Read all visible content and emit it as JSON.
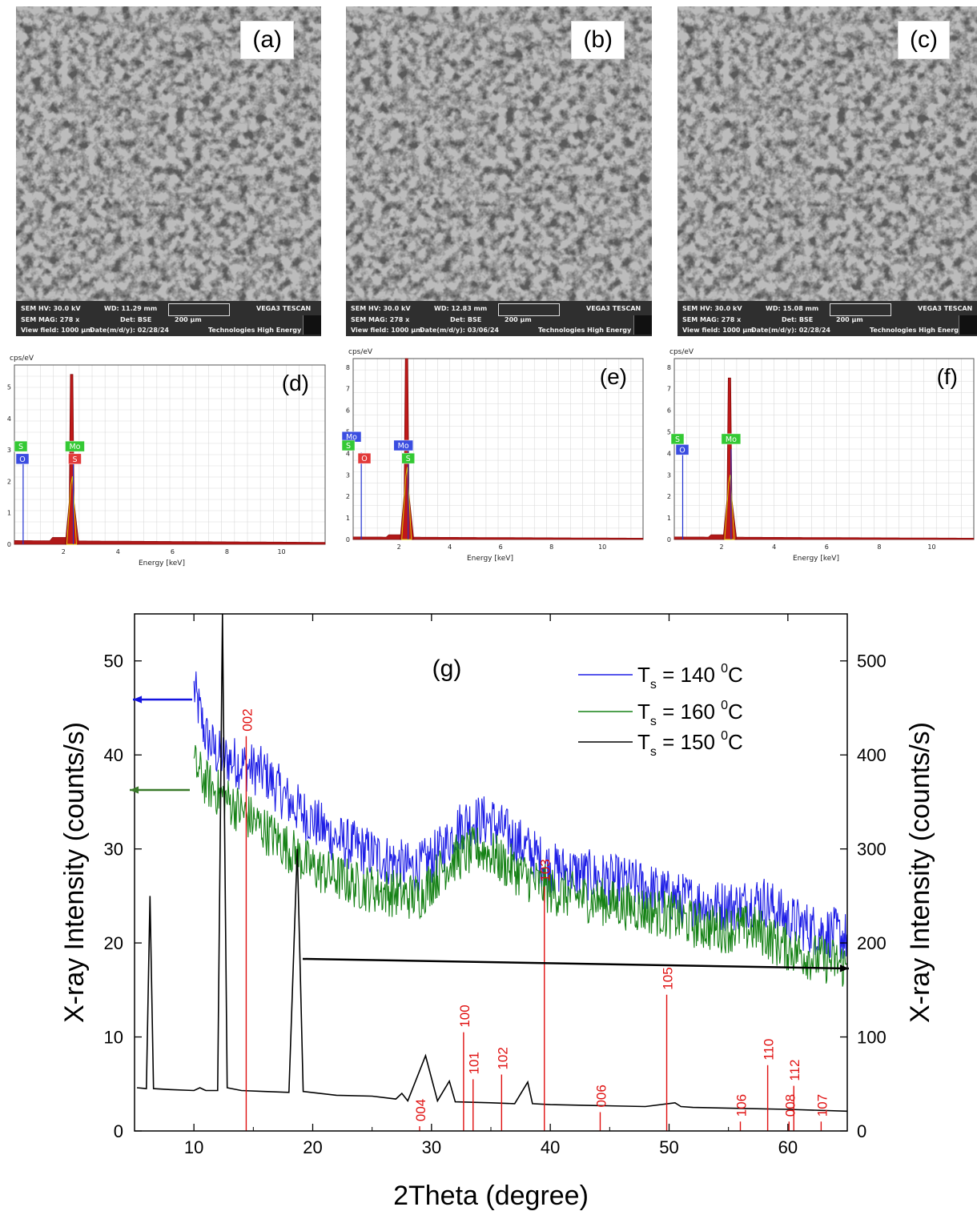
{
  "sem_panels": [
    {
      "label": "(a)",
      "hv": "SEM HV: 30.0 kV",
      "wd": "WD: 11.29 mm",
      "mag": "SEM MAG: 278 x",
      "det": "Det: BSE",
      "scale": "200 µm",
      "view": "View field: 1000 µm",
      "date": "Date(m/d/y): 02/28/24",
      "vendor": "VEGA3 TESCAN",
      "org": "Technologies High Energy"
    },
    {
      "label": "(b)",
      "hv": "SEM HV: 30.0 kV",
      "wd": "WD: 12.83 mm",
      "mag": "SEM MAG: 278 x",
      "det": "Det: BSE",
      "scale": "200 µm",
      "view": "View field: 1000 µm",
      "date": "Date(m/d/y): 03/06/24",
      "vendor": "VEGA3 TESCAN",
      "org": "Technologies High Energy"
    },
    {
      "label": "(c)",
      "hv": "SEM HV: 30.0 kV",
      "wd": "WD: 15.08 mm",
      "mag": "SEM MAG: 278 x",
      "det": "Det: BSE",
      "scale": "200 µm",
      "view": "View field: 1000 µm",
      "date": "Date(m/d/y): 02/28/24",
      "vendor": "VEGA3 TESCAN",
      "org": "Technologies High Energy"
    }
  ],
  "eds_panels": [
    {
      "label": "(d)",
      "ylabel": "cps/eV",
      "xlabel": "Energy [keV]",
      "yticks": [
        "0",
        "1",
        "2",
        "3",
        "4",
        "5"
      ],
      "xticks": [
        "2",
        "4",
        "6",
        "8",
        "10"
      ],
      "tags": [
        "Mo",
        "S",
        "O",
        "S"
      ]
    },
    {
      "label": "(e)",
      "ylabel": "cps/eV",
      "xlabel": "Energy [keV]",
      "yticks": [
        "0",
        "1",
        "2",
        "3",
        "4",
        "5",
        "6",
        "7",
        "8"
      ],
      "xticks": [
        "2",
        "4",
        "6",
        "8",
        "10"
      ],
      "tags": [
        "Mo",
        "S",
        "O",
        "Mo",
        "S"
      ]
    },
    {
      "label": "(f)",
      "ylabel": "cps/eV",
      "xlabel": "Energy [keV]",
      "yticks": [
        "0",
        "1",
        "2",
        "3",
        "4",
        "5",
        "6",
        "7",
        "8"
      ],
      "xticks": [
        "2",
        "4",
        "6",
        "8",
        "10"
      ],
      "tags": [
        "S",
        "O",
        "Mo"
      ]
    }
  ],
  "chart_data": {
    "type": "line",
    "annotation": "(g)",
    "xlabel": "2Theta (degree)",
    "ylabel": "X-ray Intensity (counts/s)",
    "ylabel_right": "X-ray Intensity (counts/s)",
    "xlim": [
      5,
      65
    ],
    "ylim": [
      0,
      55
    ],
    "ylim_right": [
      0,
      550
    ],
    "xticks": [
      10,
      20,
      30,
      40,
      50,
      60
    ],
    "yticks": [
      0,
      10,
      20,
      30,
      40,
      50
    ],
    "yticks_right": [
      0,
      100,
      200,
      300,
      400,
      500
    ],
    "series": [
      {
        "name": "T_s = 140 °C",
        "legend_main": "T",
        "legend_sub": "s",
        "legend_rest": " = 140 ",
        "legend_sup": "0",
        "legend_end": "C",
        "color": "#1e1ee6",
        "axis": "left",
        "points": [
          [
            10,
            47
          ],
          [
            11,
            42
          ],
          [
            12,
            40
          ],
          [
            14,
            39
          ],
          [
            16,
            38
          ],
          [
            18,
            35
          ],
          [
            20,
            33
          ],
          [
            22,
            31
          ],
          [
            24,
            30
          ],
          [
            26,
            29
          ],
          [
            28,
            28
          ],
          [
            29,
            28
          ],
          [
            30,
            29
          ],
          [
            31,
            30
          ],
          [
            32,
            32
          ],
          [
            33,
            33
          ],
          [
            34,
            33
          ],
          [
            35,
            33
          ],
          [
            36,
            32
          ],
          [
            38,
            30
          ],
          [
            40,
            28
          ],
          [
            42,
            27.5
          ],
          [
            44,
            27
          ],
          [
            46,
            26.5
          ],
          [
            48,
            26
          ],
          [
            50,
            25
          ],
          [
            52,
            24.5
          ],
          [
            54,
            24
          ],
          [
            55,
            24
          ],
          [
            56,
            24
          ],
          [
            57,
            24.5
          ],
          [
            58,
            24.5
          ],
          [
            59,
            23.5
          ],
          [
            60,
            22.5
          ],
          [
            62,
            21.5
          ],
          [
            64,
            21
          ],
          [
            65,
            20.5
          ]
        ]
      },
      {
        "name": "T_s = 160 °C",
        "legend_main": "T",
        "legend_sub": "s",
        "legend_rest": " = 160 ",
        "legend_sup": "0",
        "legend_end": "C",
        "color": "#168216",
        "axis": "left",
        "points": [
          [
            10,
            39
          ],
          [
            11,
            37
          ],
          [
            12,
            36
          ],
          [
            14,
            34
          ],
          [
            16,
            32
          ],
          [
            18,
            30
          ],
          [
            20,
            28
          ],
          [
            22,
            27
          ],
          [
            24,
            26
          ],
          [
            26,
            25.5
          ],
          [
            28,
            25
          ],
          [
            29,
            25
          ],
          [
            30,
            26.5
          ],
          [
            31,
            28
          ],
          [
            32,
            29
          ],
          [
            33,
            29.5
          ],
          [
            34,
            30
          ],
          [
            35,
            29.5
          ],
          [
            36,
            28.5
          ],
          [
            38,
            27
          ],
          [
            40,
            25.5
          ],
          [
            42,
            25
          ],
          [
            44,
            24.5
          ],
          [
            46,
            24
          ],
          [
            48,
            23.5
          ],
          [
            50,
            23
          ],
          [
            52,
            22
          ],
          [
            54,
            21.5
          ],
          [
            56,
            21.5
          ],
          [
            57,
            21.5
          ],
          [
            58,
            21
          ],
          [
            59,
            20
          ],
          [
            60,
            19.5
          ],
          [
            62,
            18.5
          ],
          [
            64,
            18
          ],
          [
            65,
            17.5
          ]
        ]
      },
      {
        "name": "T_s = 150 °C",
        "legend_main": "T",
        "legend_sub": "s",
        "legend_rest": " = 150 ",
        "legend_sup": "0",
        "legend_end": "C",
        "color": "#000000",
        "axis": "right",
        "points": [
          [
            5.2,
            46
          ],
          [
            6,
            45
          ],
          [
            6.3,
            250
          ],
          [
            6.6,
            45
          ],
          [
            8,
            44
          ],
          [
            10,
            43
          ],
          [
            10.5,
            46
          ],
          [
            11,
            43
          ],
          [
            12,
            43
          ],
          [
            12.4,
            550
          ],
          [
            12.8,
            46
          ],
          [
            14,
            43
          ],
          [
            16,
            42
          ],
          [
            18,
            41
          ],
          [
            18.7,
            300
          ],
          [
            19.2,
            42
          ],
          [
            22,
            38
          ],
          [
            25,
            37
          ],
          [
            27,
            34
          ],
          [
            27.5,
            40
          ],
          [
            28,
            32
          ],
          [
            29.5,
            80
          ],
          [
            30.5,
            32
          ],
          [
            31.5,
            53
          ],
          [
            32,
            31
          ],
          [
            35,
            30
          ],
          [
            37,
            29
          ],
          [
            38.1,
            52
          ],
          [
            38.5,
            29
          ],
          [
            40,
            28
          ],
          [
            44,
            27
          ],
          [
            48,
            26
          ],
          [
            50.5,
            30
          ],
          [
            51,
            26
          ],
          [
            52,
            25
          ],
          [
            56,
            24
          ],
          [
            60,
            23
          ],
          [
            65,
            21
          ]
        ]
      }
    ],
    "reference_lines": [
      {
        "hkl": "002",
        "x": 14.4,
        "value": 42
      },
      {
        "hkl": "004",
        "x": 29.0,
        "value": 0.5
      },
      {
        "hkl": "100",
        "x": 32.7,
        "value": 10.5
      },
      {
        "hkl": "101",
        "x": 33.5,
        "value": 5.5
      },
      {
        "hkl": "102",
        "x": 35.9,
        "value": 6
      },
      {
        "hkl": "103",
        "x": 39.5,
        "value": 26
      },
      {
        "hkl": "006",
        "x": 44.2,
        "value": 2
      },
      {
        "hkl": "105",
        "x": 49.8,
        "value": 14.5
      },
      {
        "hkl": "106",
        "x": 56.0,
        "value": 1
      },
      {
        "hkl": "110",
        "x": 58.3,
        "value": 7
      },
      {
        "hkl": "008",
        "x": 60.1,
        "value": 1
      },
      {
        "hkl": "112",
        "x": 60.5,
        "value": 4.8
      },
      {
        "hkl": "107",
        "x": 62.8,
        "value": 1
      }
    ]
  }
}
